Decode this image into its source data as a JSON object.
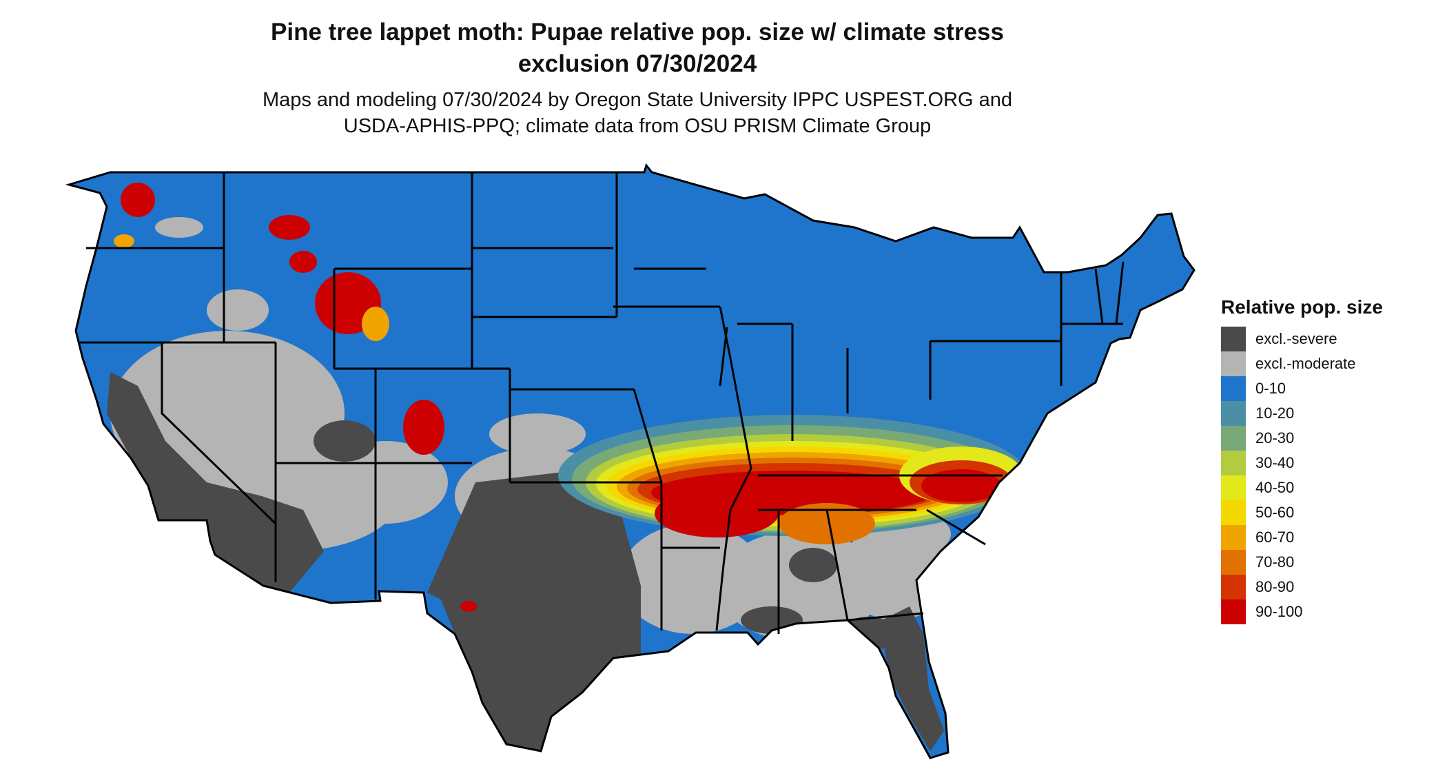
{
  "title": {
    "line1": "Pine tree lappet moth: Pupae relative pop. size w/ climate stress",
    "line2": "exclusion 07/30/2024"
  },
  "subtitle": {
    "line1": "Maps and modeling 07/30/2024 by Oregon State University IPPC USPEST.ORG and",
    "line2": "USDA-APHIS-PPQ; climate data from OSU PRISM Climate Group"
  },
  "legend": {
    "title": "Relative pop. size",
    "items": [
      {
        "label": "excl.-severe",
        "color": "#4a4a4a"
      },
      {
        "label": "excl.-moderate",
        "color": "#b4b4b4"
      },
      {
        "label": "0-10",
        "color": "#1f74cc"
      },
      {
        "label": "10-20",
        "color": "#4a8fa6"
      },
      {
        "label": "20-30",
        "color": "#7aa978"
      },
      {
        "label": "30-40",
        "color": "#b3cc3f"
      },
      {
        "label": "40-50",
        "color": "#e3e81a"
      },
      {
        "label": "50-60",
        "color": "#f5d800"
      },
      {
        "label": "60-70",
        "color": "#f0a400"
      },
      {
        "label": "70-80",
        "color": "#e27200"
      },
      {
        "label": "80-90",
        "color": "#d43400"
      },
      {
        "label": "90-100",
        "color": "#cc0000"
      }
    ]
  },
  "colors": {
    "severe": "#4a4a4a",
    "moderate": "#b4b4b4",
    "low": "#1f74cc",
    "border": "#000000"
  }
}
